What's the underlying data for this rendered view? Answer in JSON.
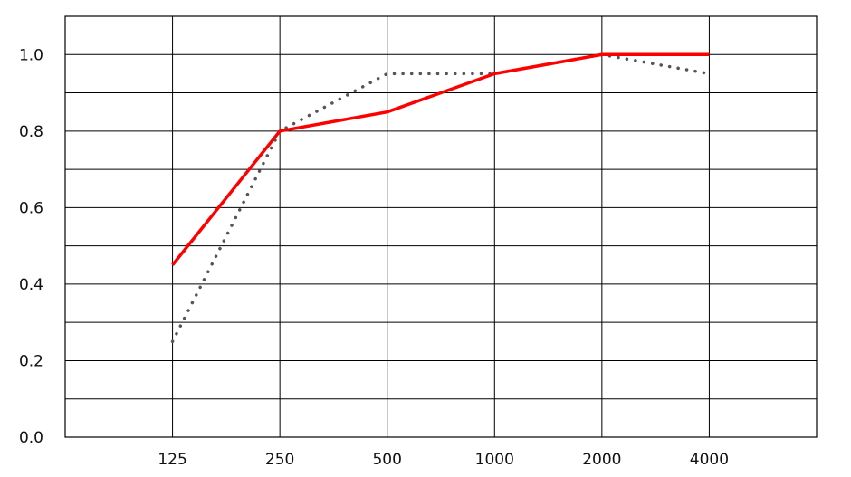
{
  "chart_data": {
    "type": "line",
    "categories": [
      "125",
      "250",
      "500",
      "1000",
      "2000",
      "4000"
    ],
    "x_slots": 7,
    "ylim": [
      0,
      1.1
    ],
    "y_ticks": [
      "0.0",
      "0.2",
      "0.4",
      "0.6",
      "0.8",
      "1.0"
    ],
    "y_tick_values": [
      0,
      0.2,
      0.4,
      0.6,
      0.8,
      1.0
    ],
    "y_grid_step": 0.1,
    "grid": true,
    "title": "",
    "xlabel": "",
    "ylabel": "",
    "series": [
      {
        "values": [
          0.45,
          0.8,
          0.85,
          0.95,
          1.0,
          1.0
        ],
        "color": "#ff0000",
        "style": "solid"
      },
      {
        "values": [
          0.25,
          0.8,
          0.95,
          0.95,
          1.0,
          0.95
        ],
        "color": "#555555",
        "style": "dotted"
      }
    ]
  }
}
